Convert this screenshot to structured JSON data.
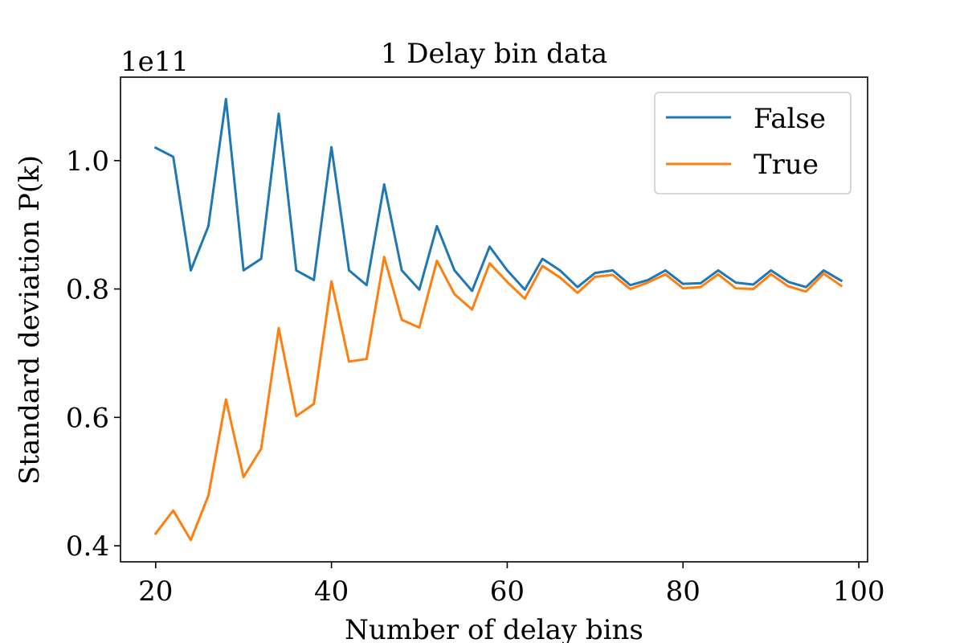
{
  "chart_data": {
    "type": "line",
    "title": "1 Delay bin data",
    "xlabel": "Number of delay bins",
    "ylabel": "Standard deviation P(k)",
    "y_multiplier_label": "1e11",
    "xlim": [
      16,
      101
    ],
    "ylim": [
      0.375,
      1.13
    ],
    "xticks": [
      20,
      40,
      60,
      80,
      100
    ],
    "xtick_labels": [
      "20",
      "40",
      "60",
      "80",
      "100"
    ],
    "yticks": [
      0.4,
      0.6,
      0.8,
      1.0
    ],
    "ytick_labels": [
      "0.4",
      "0.6",
      "0.8",
      "1.0"
    ],
    "grid": false,
    "legend_position": "top-right",
    "x": [
      20,
      22,
      24,
      26,
      28,
      30,
      32,
      34,
      36,
      38,
      40,
      42,
      44,
      46,
      48,
      50,
      52,
      54,
      56,
      58,
      60,
      62,
      64,
      66,
      68,
      70,
      72,
      74,
      76,
      78,
      80,
      82,
      84,
      86,
      88,
      90,
      92,
      94,
      96,
      98
    ],
    "series": [
      {
        "name": "False",
        "color": "#1f77b4",
        "values": [
          1.02,
          1.006,
          0.829,
          0.898,
          1.096,
          0.829,
          0.847,
          1.073,
          0.829,
          0.814,
          1.021,
          0.829,
          0.806,
          0.963,
          0.829,
          0.799,
          0.898,
          0.829,
          0.797,
          0.866,
          0.829,
          0.799,
          0.847,
          0.829,
          0.803,
          0.825,
          0.829,
          0.806,
          0.814,
          0.829,
          0.808,
          0.809,
          0.829,
          0.81,
          0.807,
          0.829,
          0.811,
          0.803,
          0.829,
          0.813
        ]
      },
      {
        "name": "True",
        "color": "#ff7f0e",
        "values": [
          0.419,
          0.455,
          0.409,
          0.478,
          0.628,
          0.507,
          0.551,
          0.739,
          0.602,
          0.621,
          0.812,
          0.687,
          0.691,
          0.85,
          0.752,
          0.74,
          0.844,
          0.792,
          0.768,
          0.84,
          0.811,
          0.785,
          0.836,
          0.818,
          0.794,
          0.819,
          0.822,
          0.8,
          0.81,
          0.823,
          0.801,
          0.803,
          0.823,
          0.801,
          0.8,
          0.823,
          0.804,
          0.796,
          0.824,
          0.805
        ]
      }
    ]
  }
}
